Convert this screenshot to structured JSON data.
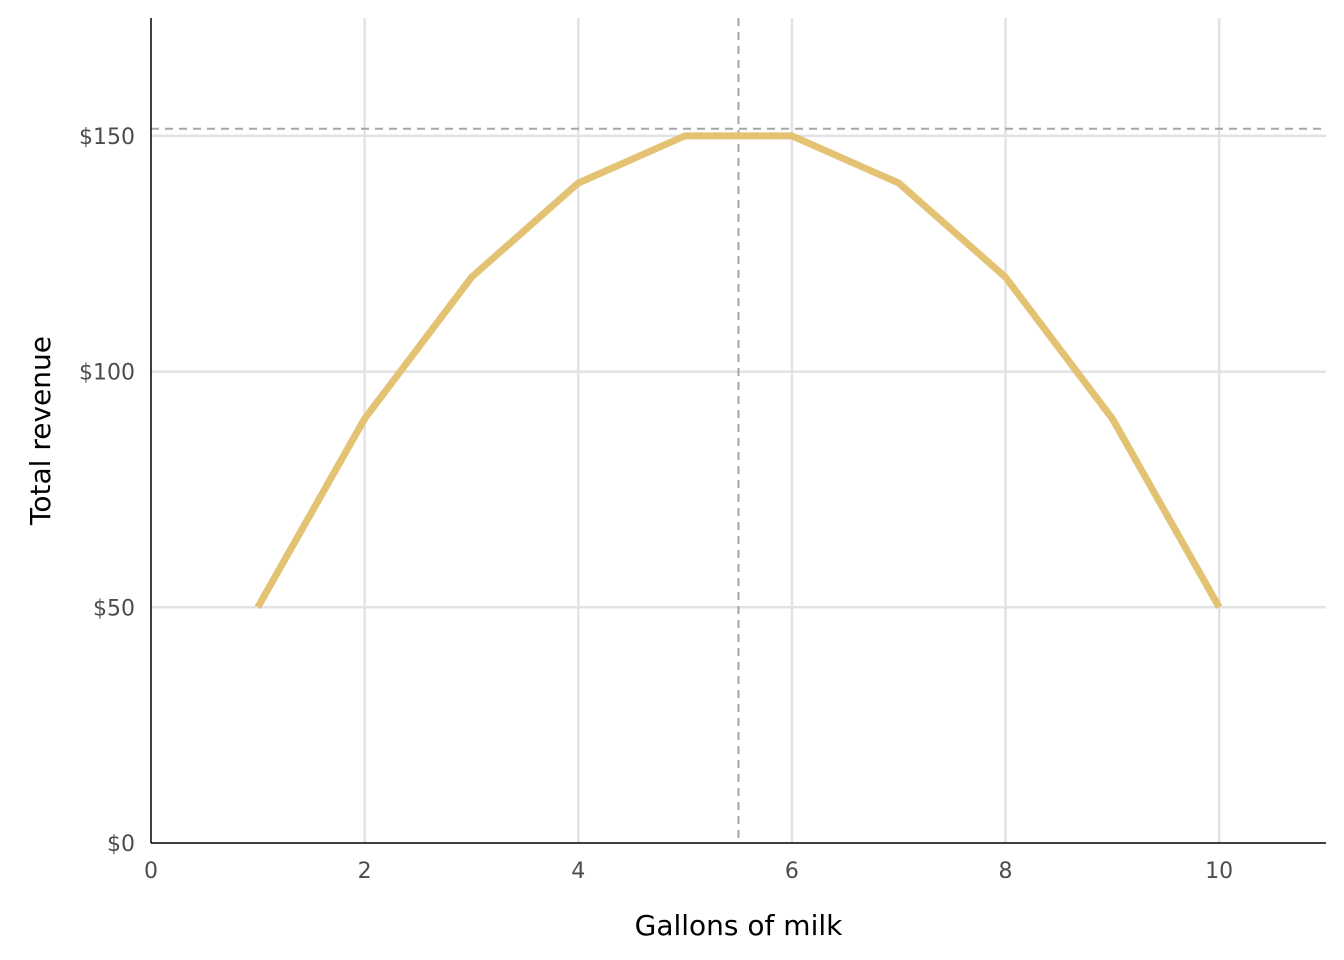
{
  "chart_data": {
    "type": "line",
    "title": "",
    "xlabel": "Gallons of milk",
    "ylabel": "Total revenue",
    "xlim": [
      0,
      11
    ],
    "ylim": [
      0,
      175
    ],
    "x_ticks": [
      0,
      2,
      4,
      6,
      8,
      10
    ],
    "x_tick_labels": [
      "0",
      "2",
      "4",
      "6",
      "8",
      "10"
    ],
    "y_ticks": [
      0,
      50,
      100,
      150
    ],
    "y_tick_labels": [
      "$0",
      "$50",
      "$100",
      "$150"
    ],
    "grid": true,
    "series": [
      {
        "x": [
          1,
          2,
          3,
          4,
          5,
          6,
          7,
          8,
          9,
          10
        ],
        "y": [
          50,
          90,
          120,
          140,
          150,
          150,
          140,
          120,
          90,
          50
        ],
        "color": "#e4c274"
      }
    ],
    "reference_lines": [
      {
        "orientation": "vertical",
        "x": 5.5,
        "style": "dashed",
        "color": "#a6a6a6"
      },
      {
        "orientation": "horizontal",
        "y": 151.5,
        "style": "dashed",
        "color": "#a6a6a6"
      }
    ]
  }
}
